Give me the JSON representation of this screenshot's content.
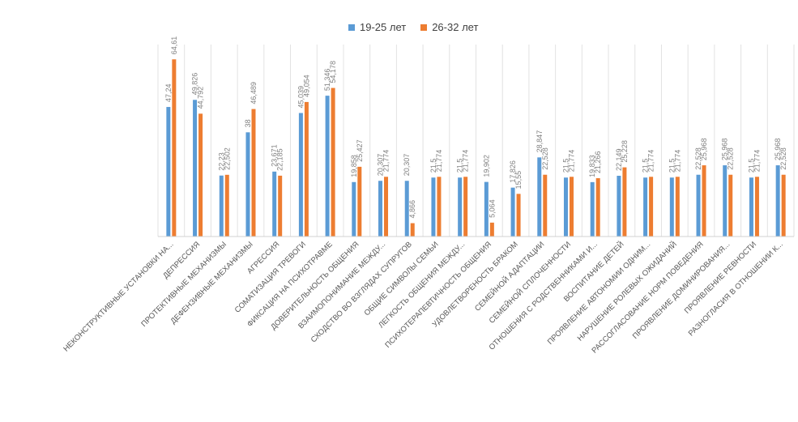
{
  "chart_data": {
    "type": "bar",
    "categories": [
      "НЕКОНСТРУКТИВНЫЕ УСТАНОВКИ НА...",
      "ДЕПРЕССИЯ",
      "ПРОТЕКТИВНЫЕ МЕХАНИЗМЫ",
      "ДЕФЕНЗИВНЫЕ МЕХАНИЗМЫ",
      "АГРЕССИЯ",
      "СОМАТИЗАЦИЯ ТРЕВОГИ",
      "ФИКСАЦИЯ НА ПСИХОТРАВМЕ",
      "ДОВЕРИТЕЛЬНОСТЬ ОБЩЕНИЯ",
      "ВЗАИМОПОНИМАНИЕ МЕЖДУ...",
      "СХОДСТВО ВО ВЗГЛЯДАХ СУПРУГОВ",
      "ОБЩИЕ СИМВОЛЫ СЕМЬИ",
      "ЛЕГКОСТЬ ОБЩЕНИЯ МЕЖДУ...",
      "ПСИХОТЕРАПЕВТИЧНОСТЬ ОБЩЕНИЯ",
      "УДОВЛЕТВОРЕНОСТЬ БРАКОМ",
      "СЕМЕЙНОЙ АДАПТАЦИИ",
      "СЕМЕЙНОЙ СПЛОЧЕННОСТИ",
      "ОТНОШЕНИЯ С РОДСТВЕННИКАМИ И...",
      "ВОСПИТАНИЕ ДЕТЕЙ",
      "ПРОЯВЛЕНИЕ АВТОНОМИИ ОДНИМ...",
      "НАРУШЕНИЕ РОЛЕВЫХ ОЖИДАНИЙ",
      "РАССОГЛАСОВАНИЕ НОРМ ПОВЕДЕНИЯ",
      "ПРОЯВЛЕНИЕ ДОМИНИРОВАНИЯ...",
      "ПРОЯВЛЕНИЕ РЕВНОСТИ",
      "РАЗНОГЛАСИЯ В ОТНОШЕНИИ К..."
    ],
    "series": [
      {
        "name": "19-25 лет",
        "color": "#5B9BD5",
        "values": [
          47.24,
          49.826,
          22.23,
          38,
          23.671,
          45.039,
          51.346,
          19.858,
          20.307,
          20.307,
          21.5,
          21.5,
          19.902,
          17.826,
          28.847,
          21.5,
          19.833,
          22.149,
          21.5,
          21.5,
          22.528,
          25.968,
          21.5,
          25.968
        ],
        "labels": [
          "47,24",
          "49,826",
          "22,23",
          "38",
          "23,671",
          "45,039",
          "51,346",
          "19,858",
          "20,307",
          "20,307",
          "21,5",
          "21,5",
          "19,902",
          "17,826",
          "28,847",
          "21,5",
          "19,833",
          "22,149",
          "21,5",
          "21,5",
          "22,528",
          "25,968",
          "21,5",
          "25,968"
        ]
      },
      {
        "name": "26-32 лет",
        "color": "#ED7D31",
        "values": [
          64.61,
          44.792,
          22.502,
          46.489,
          22.185,
          49.054,
          54.178,
          25.427,
          21.774,
          4.866,
          21.774,
          21.774,
          5.064,
          15.55,
          22.528,
          21.774,
          21.266,
          25.228,
          21.774,
          21.774,
          25.968,
          22.528,
          21.774,
          22.528
        ],
        "labels": [
          "64,61",
          "44,792",
          "22,502",
          "46,489",
          "22,185",
          "49,054",
          "54,178",
          "25,427",
          "21,774",
          "4,866",
          "21,774",
          "21,774",
          "5,064",
          "15,55",
          "22,528",
          "21,774",
          "21,266",
          "25,228",
          "21,774",
          "21,774",
          "25,968",
          "22,528",
          "21,774",
          "22,528"
        ]
      }
    ],
    "title": "",
    "xlabel": "",
    "ylabel": "",
    "ylim": [
      0,
      70
    ],
    "grid": true,
    "legend": "top-center"
  }
}
